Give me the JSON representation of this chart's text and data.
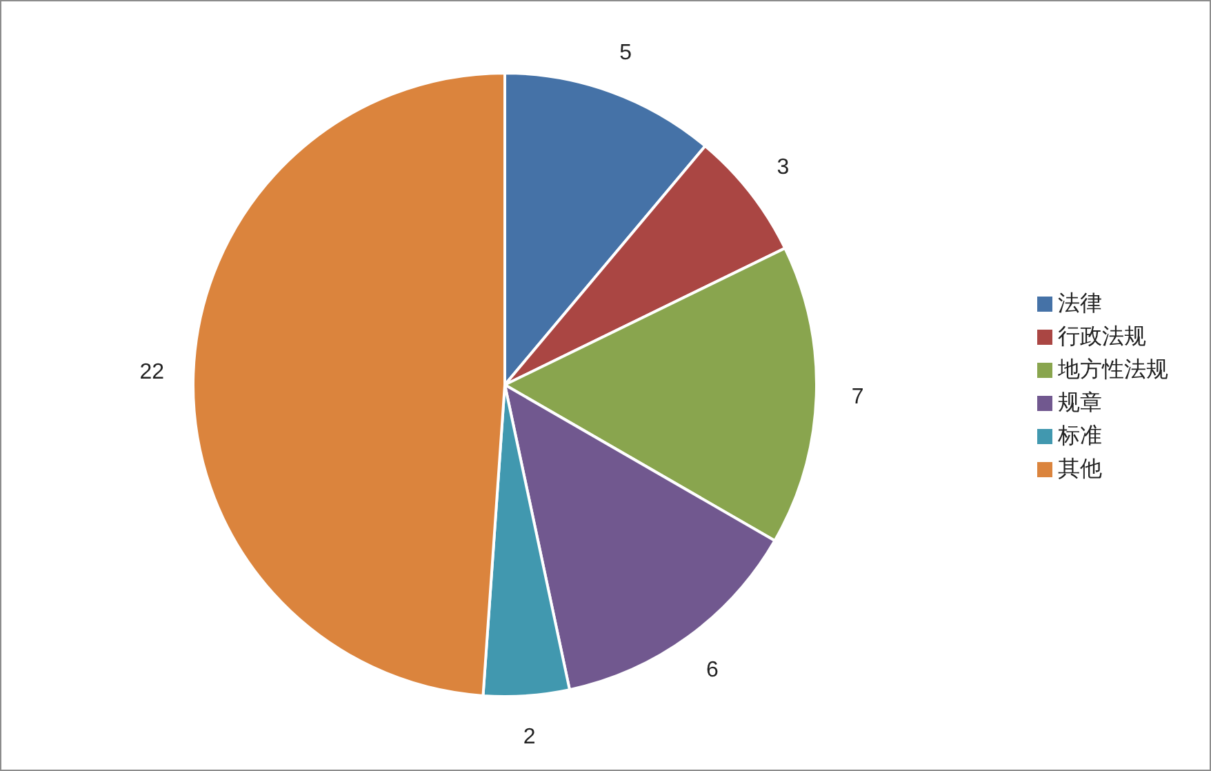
{
  "chart_data": {
    "type": "pie",
    "categories": [
      "法律",
      "行政法规",
      "地方性法规",
      "规章",
      "标准",
      "其他"
    ],
    "values": [
      5,
      3,
      7,
      6,
      2,
      22
    ],
    "colors": [
      "#4572a7",
      "#aa4643",
      "#89a54e",
      "#71588f",
      "#4198af",
      "#db843d"
    ],
    "data_labels": true,
    "legend": "right"
  }
}
